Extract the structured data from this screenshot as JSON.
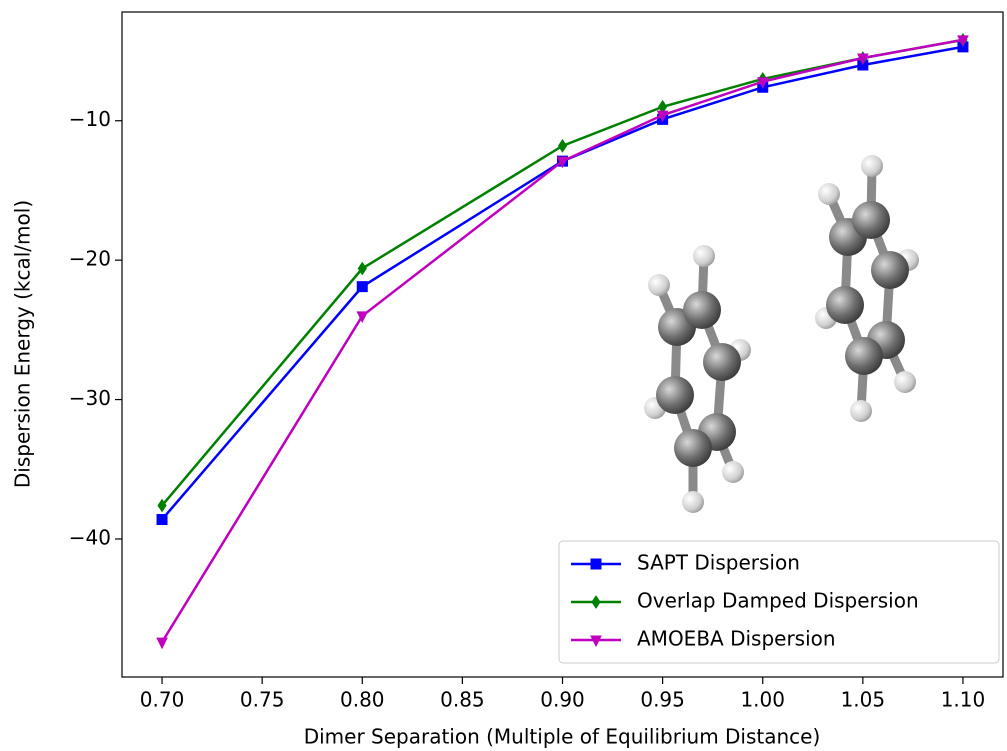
{
  "chart_data": {
    "type": "line",
    "x_label": "Dimer Separation (Multiple of Equilibrium Distance)",
    "y_label": "Dispersion Energy (kcal/mol)",
    "x": [
      0.7,
      0.8,
      0.9,
      0.95,
      1.0,
      1.05,
      1.1
    ],
    "series": [
      {
        "name": "SAPT Dispersion",
        "color": "#0000ff",
        "marker": "square",
        "values": [
          -38.6,
          -21.9,
          -12.9,
          -9.9,
          -7.6,
          -6.0,
          -4.7
        ]
      },
      {
        "name": "Overlap Damped Dispersion",
        "color": "#008000",
        "marker": "diamond",
        "values": [
          -37.6,
          -20.6,
          -11.8,
          -9.0,
          -7.0,
          -5.5,
          -4.2
        ]
      },
      {
        "name": "AMOEBA Dispersion",
        "color": "#bf00bf",
        "marker": "triangle_down",
        "values": [
          -47.4,
          -24.0,
          -12.9,
          -9.6,
          -7.2,
          -5.5,
          -4.2
        ]
      }
    ],
    "xlim": [
      0.68,
      1.12
    ],
    "ylim": [
      -49.9,
      -2.2
    ],
    "xticks": [
      {
        "value": 0.7,
        "label": "0.70"
      },
      0.75,
      {
        "value": 0.8,
        "label": "0.80"
      },
      0.85,
      {
        "value": 0.9,
        "label": "0.90"
      },
      0.95,
      {
        "value": 1.0,
        "label": "1.00"
      },
      1.05,
      {
        "value": 1.1,
        "label": "1.10"
      }
    ],
    "yticks": [
      {
        "value": -40,
        "label": "−40"
      },
      {
        "value": -30,
        "label": "−30"
      },
      {
        "value": -20,
        "label": "−20"
      },
      {
        "value": -10,
        "label": "−10"
      }
    ],
    "legend": "lower right",
    "grid": false
  }
}
